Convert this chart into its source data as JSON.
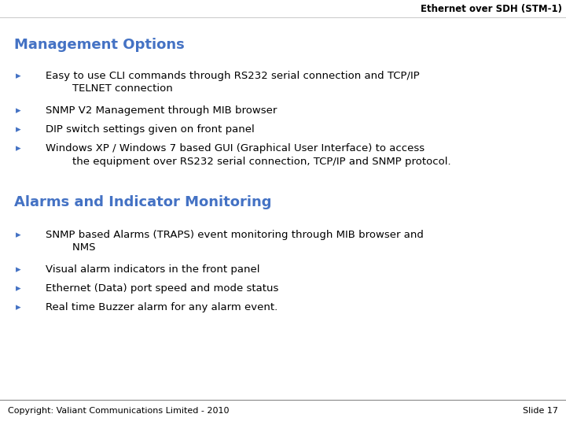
{
  "title_text": "Ethernet over SDH (STM-1)",
  "background_color": "#ffffff",
  "header_line_color": "#cccccc",
  "footer_line_color": "#888888",
  "section1_title": "Management Options",
  "section1_color": "#4472C4",
  "section1_bullets": [
    "Easy to use CLI commands through RS232 serial connection and TCP/IP\n        TELNET connection",
    "SNMP V2 Management through MIB browser",
    "DIP switch settings given on front panel",
    "Windows XP / Windows 7 based GUI (Graphical User Interface) to access\n        the equipment over RS232 serial connection, TCP/IP and SNMP protocol."
  ],
  "section2_title": "Alarms and Indicator Monitoring",
  "section2_color": "#4472C4",
  "section2_bullets": [
    "SNMP based Alarms (TRAPS) event monitoring through MIB browser and\n        NMS",
    "Visual alarm indicators in the front panel",
    "Ethernet (Data) port speed and mode status",
    "Real time Buzzer alarm for any alarm event."
  ],
  "footer_left": "Copyright: Valiant Communications Limited - 2010",
  "footer_right": "Slide 17",
  "bullet_color": "#4472C4",
  "text_color": "#000000",
  "header_fontsize": 8.5,
  "section_title_fontsize": 13,
  "bullet_fontsize": 9.5,
  "footer_fontsize": 8
}
